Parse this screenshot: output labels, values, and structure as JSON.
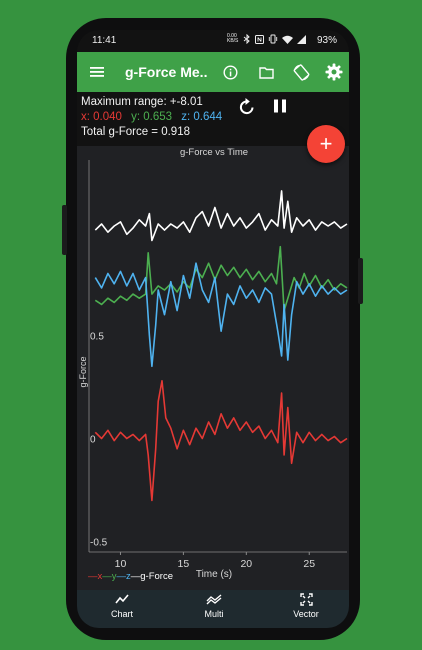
{
  "status_bar": {
    "time": "11:41",
    "indicators": [
      "0.00 KB/S",
      "bluetooth-icon",
      "nfc-icon",
      "vibrate-icon",
      "wifi-icon",
      "signal-icon"
    ],
    "battery": "93%"
  },
  "app_bar": {
    "title": "g-Force Me...",
    "icons": [
      "menu-icon",
      "info-icon",
      "folder-icon",
      "screen-rotation-icon",
      "settings-icon"
    ],
    "color": "#3fa148"
  },
  "readout": {
    "max_range": "Maximum range: +-8.01",
    "x": "x: 0.040",
    "y": "y: 0.653",
    "z": "z: 0.644",
    "total": "Total g-Force = 0.918"
  },
  "controls": {
    "reset_icon": "refresh-icon",
    "pause_icon": "pause-icon",
    "fab_icon": "plus-icon",
    "fab_label": "+"
  },
  "chart_data": {
    "type": "line",
    "title": "g-Force vs Time",
    "xlabel": "Time (s)",
    "ylabel": "g-Force",
    "x_ticks": [
      "10",
      "15",
      "20",
      "25"
    ],
    "y_ticks": [
      "0.5",
      "0",
      "-0.5"
    ],
    "xlim": [
      7.5,
      28
    ],
    "ylim": [
      -0.55,
      1.35
    ],
    "legend": "—x—y—z—g-Force",
    "legend_items": [
      {
        "label": "x",
        "color": "#e53935"
      },
      {
        "label": "y",
        "color": "#4caf50"
      },
      {
        "label": "z",
        "color": "#4fb3f0"
      },
      {
        "label": "g-Force",
        "color": "#ffffff"
      }
    ],
    "legend_position": "bottom-left",
    "grid": false,
    "series": [
      {
        "name": "g-Force",
        "color": "#ffffff",
        "values": [
          [
            8,
            1.01
          ],
          [
            8.5,
            1.04
          ],
          [
            9,
            1.0
          ],
          [
            9.5,
            1.03
          ],
          [
            10,
            1.05
          ],
          [
            10.5,
            0.99
          ],
          [
            11,
            1.02
          ],
          [
            11.5,
            1.06
          ],
          [
            12,
            1.03
          ],
          [
            12.3,
            1.09
          ],
          [
            12.5,
            0.96
          ],
          [
            13,
            1.04
          ],
          [
            13.5,
            1.01
          ],
          [
            14,
            1.04
          ],
          [
            14.5,
            1.02
          ],
          [
            15,
            1.05
          ],
          [
            15.5,
            1.0
          ],
          [
            16,
            1.07
          ],
          [
            16.5,
            1.1
          ],
          [
            17,
            1.03
          ],
          [
            17.5,
            1.12
          ],
          [
            18,
            1.02
          ],
          [
            18.5,
            1.09
          ],
          [
            19,
            1.03
          ],
          [
            19.5,
            1.07
          ],
          [
            20,
            1.02
          ],
          [
            20.5,
            1.05
          ],
          [
            21,
            1.09
          ],
          [
            21.5,
            1.01
          ],
          [
            22,
            1.06
          ],
          [
            22.5,
            1.03
          ],
          [
            22.8,
            1.2
          ],
          [
            23,
            1.02
          ],
          [
            23.3,
            1.15
          ],
          [
            23.6,
            1.0
          ],
          [
            24,
            1.07
          ],
          [
            24.5,
            1.03
          ],
          [
            25,
            1.06
          ],
          [
            25.5,
            1.01
          ],
          [
            26,
            1.05
          ],
          [
            26.5,
            1.03
          ],
          [
            27,
            1.05
          ],
          [
            27.5,
            1.02
          ],
          [
            28,
            1.04
          ]
        ]
      },
      {
        "name": "y",
        "color": "#4caf50",
        "values": [
          [
            8,
            0.67
          ],
          [
            8.5,
            0.65
          ],
          [
            9,
            0.68
          ],
          [
            9.5,
            0.66
          ],
          [
            10,
            0.69
          ],
          [
            10.5,
            0.67
          ],
          [
            11,
            0.7
          ],
          [
            11.5,
            0.68
          ],
          [
            12,
            0.7
          ],
          [
            12.2,
            0.9
          ],
          [
            12.5,
            0.7
          ],
          [
            13,
            0.74
          ],
          [
            13.5,
            0.72
          ],
          [
            14,
            0.75
          ],
          [
            14.5,
            0.71
          ],
          [
            15,
            0.76
          ],
          [
            15.5,
            0.73
          ],
          [
            16,
            0.82
          ],
          [
            16.5,
            0.78
          ],
          [
            17,
            0.85
          ],
          [
            17.5,
            0.77
          ],
          [
            18,
            0.84
          ],
          [
            18.5,
            0.79
          ],
          [
            19,
            0.83
          ],
          [
            19.5,
            0.78
          ],
          [
            20,
            0.82
          ],
          [
            20.5,
            0.77
          ],
          [
            21,
            0.81
          ],
          [
            21.5,
            0.76
          ],
          [
            22,
            0.8
          ],
          [
            22.4,
            0.75
          ],
          [
            22.7,
            0.93
          ],
          [
            23,
            0.62
          ],
          [
            23.4,
            0.7
          ],
          [
            23.8,
            0.78
          ],
          [
            24.2,
            0.73
          ],
          [
            24.6,
            0.8
          ],
          [
            25,
            0.74
          ],
          [
            25.5,
            0.79
          ],
          [
            26,
            0.73
          ],
          [
            26.5,
            0.77
          ],
          [
            27,
            0.72
          ],
          [
            27.5,
            0.75
          ],
          [
            28,
            0.73
          ]
        ]
      },
      {
        "name": "z",
        "color": "#4fb3f0",
        "values": [
          [
            8,
            0.78
          ],
          [
            8.5,
            0.73
          ],
          [
            9,
            0.8
          ],
          [
            9.5,
            0.75
          ],
          [
            10,
            0.81
          ],
          [
            10.5,
            0.74
          ],
          [
            11,
            0.8
          ],
          [
            11.5,
            0.72
          ],
          [
            12,
            0.78
          ],
          [
            12.3,
            0.5
          ],
          [
            12.5,
            0.35
          ],
          [
            12.8,
            0.55
          ],
          [
            13,
            0.72
          ],
          [
            13.5,
            0.6
          ],
          [
            14,
            0.76
          ],
          [
            14.5,
            0.62
          ],
          [
            15,
            0.79
          ],
          [
            15.5,
            0.68
          ],
          [
            16,
            0.85
          ],
          [
            16.5,
            0.72
          ],
          [
            17,
            0.66
          ],
          [
            17.5,
            0.78
          ],
          [
            18,
            0.52
          ],
          [
            18.5,
            0.7
          ],
          [
            19,
            0.65
          ],
          [
            19.5,
            0.74
          ],
          [
            20,
            0.68
          ],
          [
            20.5,
            0.72
          ],
          [
            21,
            0.66
          ],
          [
            21.5,
            0.73
          ],
          [
            22,
            0.7
          ],
          [
            22.5,
            0.52
          ],
          [
            22.8,
            0.4
          ],
          [
            23,
            0.65
          ],
          [
            23.3,
            0.38
          ],
          [
            23.6,
            0.6
          ],
          [
            24,
            0.76
          ],
          [
            24.5,
            0.7
          ],
          [
            25,
            0.75
          ],
          [
            25.5,
            0.69
          ],
          [
            26,
            0.74
          ],
          [
            26.5,
            0.7
          ],
          [
            27,
            0.73
          ],
          [
            27.5,
            0.7
          ],
          [
            28,
            0.72
          ]
        ]
      },
      {
        "name": "x",
        "color": "#e53935",
        "values": [
          [
            8,
            0.03
          ],
          [
            8.5,
            0.0
          ],
          [
            9,
            0.04
          ],
          [
            9.5,
            -0.01
          ],
          [
            10,
            0.03
          ],
          [
            10.5,
            0.0
          ],
          [
            11,
            0.02
          ],
          [
            11.5,
            -0.01
          ],
          [
            12,
            0.02
          ],
          [
            12.2,
            -0.08
          ],
          [
            12.5,
            -0.3
          ],
          [
            12.8,
            -0.05
          ],
          [
            13,
            0.18
          ],
          [
            13.3,
            0.28
          ],
          [
            13.6,
            0.1
          ],
          [
            14,
            0.05
          ],
          [
            14.5,
            -0.05
          ],
          [
            15,
            0.04
          ],
          [
            15.5,
            -0.03
          ],
          [
            16,
            0.05
          ],
          [
            16.5,
            0.0
          ],
          [
            17,
            0.08
          ],
          [
            17.5,
            0.02
          ],
          [
            18,
            0.12
          ],
          [
            18.5,
            0.05
          ],
          [
            19,
            0.1
          ],
          [
            19.5,
            0.04
          ],
          [
            20,
            0.08
          ],
          [
            20.5,
            0.03
          ],
          [
            21,
            0.06
          ],
          [
            21.5,
            0.0
          ],
          [
            22,
            0.04
          ],
          [
            22.5,
            -0.02
          ],
          [
            22.8,
            0.22
          ],
          [
            23,
            -0.08
          ],
          [
            23.3,
            0.15
          ],
          [
            23.6,
            -0.12
          ],
          [
            24,
            0.03
          ],
          [
            24.5,
            -0.02
          ],
          [
            25,
            0.03
          ],
          [
            25.5,
            -0.01
          ],
          [
            26,
            0.02
          ],
          [
            26.5,
            -0.01
          ],
          [
            27,
            0.01
          ],
          [
            27.5,
            -0.02
          ],
          [
            28,
            0.0
          ]
        ]
      }
    ]
  },
  "bottom_nav": [
    {
      "label": "Chart",
      "icon": "chart-icon"
    },
    {
      "label": "Multi",
      "icon": "multi-icon"
    },
    {
      "label": "Vector",
      "icon": "vector-icon"
    }
  ]
}
